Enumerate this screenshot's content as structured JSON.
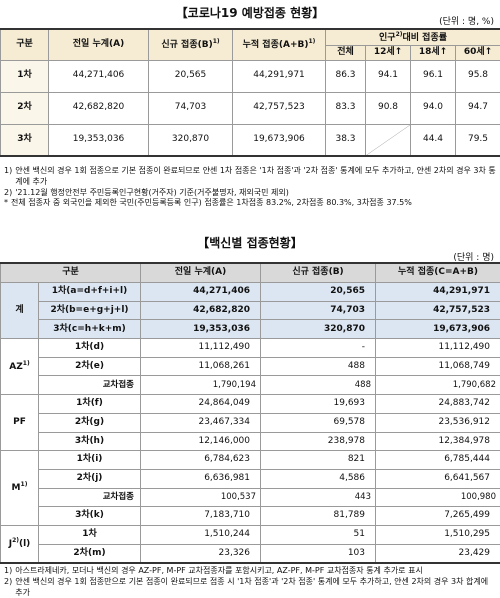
{
  "vaccination_status": {
    "title": "【코로나19 예방접종 현황】",
    "unit": "(단위 : 명, %)",
    "headers": [
      {
        "text": "구분"
      },
      {
        "text": "전일 누계(A)"
      },
      {
        "text": "신규 접종(B)",
        "note": "1)"
      },
      {
        "text": "누적 접종(A+B)",
        "note": "1)"
      }
    ],
    "group_header": {
      "text": "인구",
      "note": "2)",
      "after": "대비 접종률"
    },
    "sub_headers": [
      "전체",
      "12세↑",
      "18세↑",
      "60세↑"
    ],
    "rows": [
      {
        "label": "1차",
        "values": [
          "44,271,406",
          "20,565",
          "44,291,971",
          "86.3",
          "94.1",
          "96.1",
          "95.8"
        ]
      },
      {
        "label": "2차",
        "values": [
          "42,682,820",
          "74,703",
          "42,757,523",
          "83.3",
          "90.8",
          "94.0",
          "94.7"
        ]
      },
      {
        "label": "3차",
        "values": [
          "19,353,036",
          "320,870",
          "19,673,906",
          "38.3",
          null,
          "44.4",
          "79.5"
        ]
      }
    ],
    "notes": [
      {
        "marker": "1)",
        "text": "얀센 백신의 경우 1회 접종으로 기본 접종이 완료되므로 얀센 1차 접종은 '1차 접종'과 '2차 접종' 통계에 모두 추가하고, 얀센 2차의 경우 3차 통계에 추가"
      },
      {
        "marker": "2)",
        "text": "'21.12월 행정안전부 주민등록인구현황(거주자) 기준(거주불명자, 재외국민 제외)"
      },
      {
        "marker": "*",
        "text": "전체 접종자 중 외국인을 제외한 국민(주민등록등록 인구) 접종률은 1차접종 83.2%, 2차접종 80.3%, 3차접종 37.5%"
      }
    ]
  },
  "vaccine_status": {
    "title": "【백신별 접종현황】",
    "unit": "(단위 : 명)",
    "headers": [
      "구분",
      "전일 누계(A)",
      "신규 접종(B)",
      "누적 접종(C=A+B)"
    ],
    "groups": [
      {
        "label": "계",
        "rows": [
          {
            "label": "1차(a=d+f+i+l)",
            "values": [
              "44,271,406",
              "20,565",
              "44,291,971"
            ]
          },
          {
            "label": "2차(b=e+g+j+l)",
            "values": [
              "42,682,820",
              "74,703",
              "42,757,523"
            ]
          },
          {
            "label": "3차(c=h+k+m)",
            "values": [
              "19,353,036",
              "320,870",
              "19,673,906"
            ]
          }
        ]
      },
      {
        "label": "AZ",
        "note": "1)",
        "rows": [
          {
            "label": "1차(d)",
            "values": [
              "11,112,490",
              "-",
              "11,112,490"
            ]
          },
          {
            "label": "2차(e)",
            "values": [
              "11,068,261",
              "488",
              "11,068,749"
            ],
            "cross": {
              "label": "교차접종",
              "values": [
                "1,790,194",
                "488",
                "1,790,682"
              ]
            }
          }
        ]
      },
      {
        "label": "PF",
        "rows": [
          {
            "label": "1차(f)",
            "values": [
              "24,864,049",
              "19,693",
              "24,883,742"
            ]
          },
          {
            "label": "2차(g)",
            "values": [
              "23,467,334",
              "69,578",
              "23,536,912"
            ]
          },
          {
            "label": "3차(h)",
            "values": [
              "12,146,000",
              "238,978",
              "12,384,978"
            ]
          }
        ]
      },
      {
        "label": "M",
        "note": "1)",
        "rows": [
          {
            "label": "1차(i)",
            "values": [
              "6,784,623",
              "821",
              "6,785,444"
            ]
          },
          {
            "label": "2차(j)",
            "values": [
              "6,636,981",
              "4,586",
              "6,641,567"
            ],
            "cross": {
              "label": "교차접종",
              "values": [
                "100,537",
                "443",
                "100,980"
              ]
            }
          },
          {
            "label": "3차(k)",
            "values": [
              "7,183,710",
              "81,789",
              "7,265,499"
            ]
          }
        ]
      },
      {
        "label": "J",
        "note": "2)",
        "suffix": "(l)",
        "rows": [
          {
            "label": "1차",
            "values": [
              "1,510,244",
              "51",
              "1,510,295"
            ]
          },
          {
            "label": "2차(m)",
            "values": [
              "23,326",
              "103",
              "23,429"
            ]
          }
        ]
      }
    ],
    "notes": [
      {
        "marker": "1)",
        "text": "아스트라제네카, 모더나 백신의 경우 AZ-PF, M-PF 교차접종자를 포함시키고, AZ-PF, M-PF 교차접종자 통계 추가로 표시"
      },
      {
        "marker": "2)",
        "text": "얀센 백신의 경우 1회 접종만으로 기본 접종이 완료되므로 접종 시 '1차 접종'과 '2차 접종' 통계에 모두 추가하고, 얀센 2차의 경우 3차 합계에 추가"
      }
    ]
  }
}
